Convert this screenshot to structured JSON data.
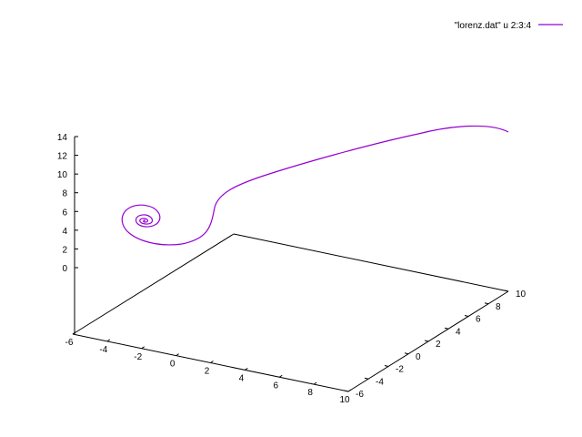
{
  "chart_data": {
    "type": "line",
    "projection": "3d",
    "title": "",
    "xlabel": "",
    "ylabel": "",
    "zlabel": "",
    "xlim": [
      -6,
      10
    ],
    "ylim": [
      -6,
      10
    ],
    "zlim": [
      0,
      14
    ],
    "x_ticks": [
      -6,
      -4,
      -2,
      0,
      2,
      4,
      6,
      8,
      10
    ],
    "y_ticks": [
      -6,
      -4,
      -2,
      0,
      2,
      4,
      6,
      8,
      10
    ],
    "z_ticks": [
      0,
      2,
      4,
      6,
      8,
      10,
      12,
      14
    ],
    "grid": false,
    "legend_position": "top-right",
    "series": [
      {
        "name": "\"lorenz.dat\" u 2:3:4",
        "color": "#9400d3",
        "note_points_screen_traced": true
      }
    ]
  }
}
